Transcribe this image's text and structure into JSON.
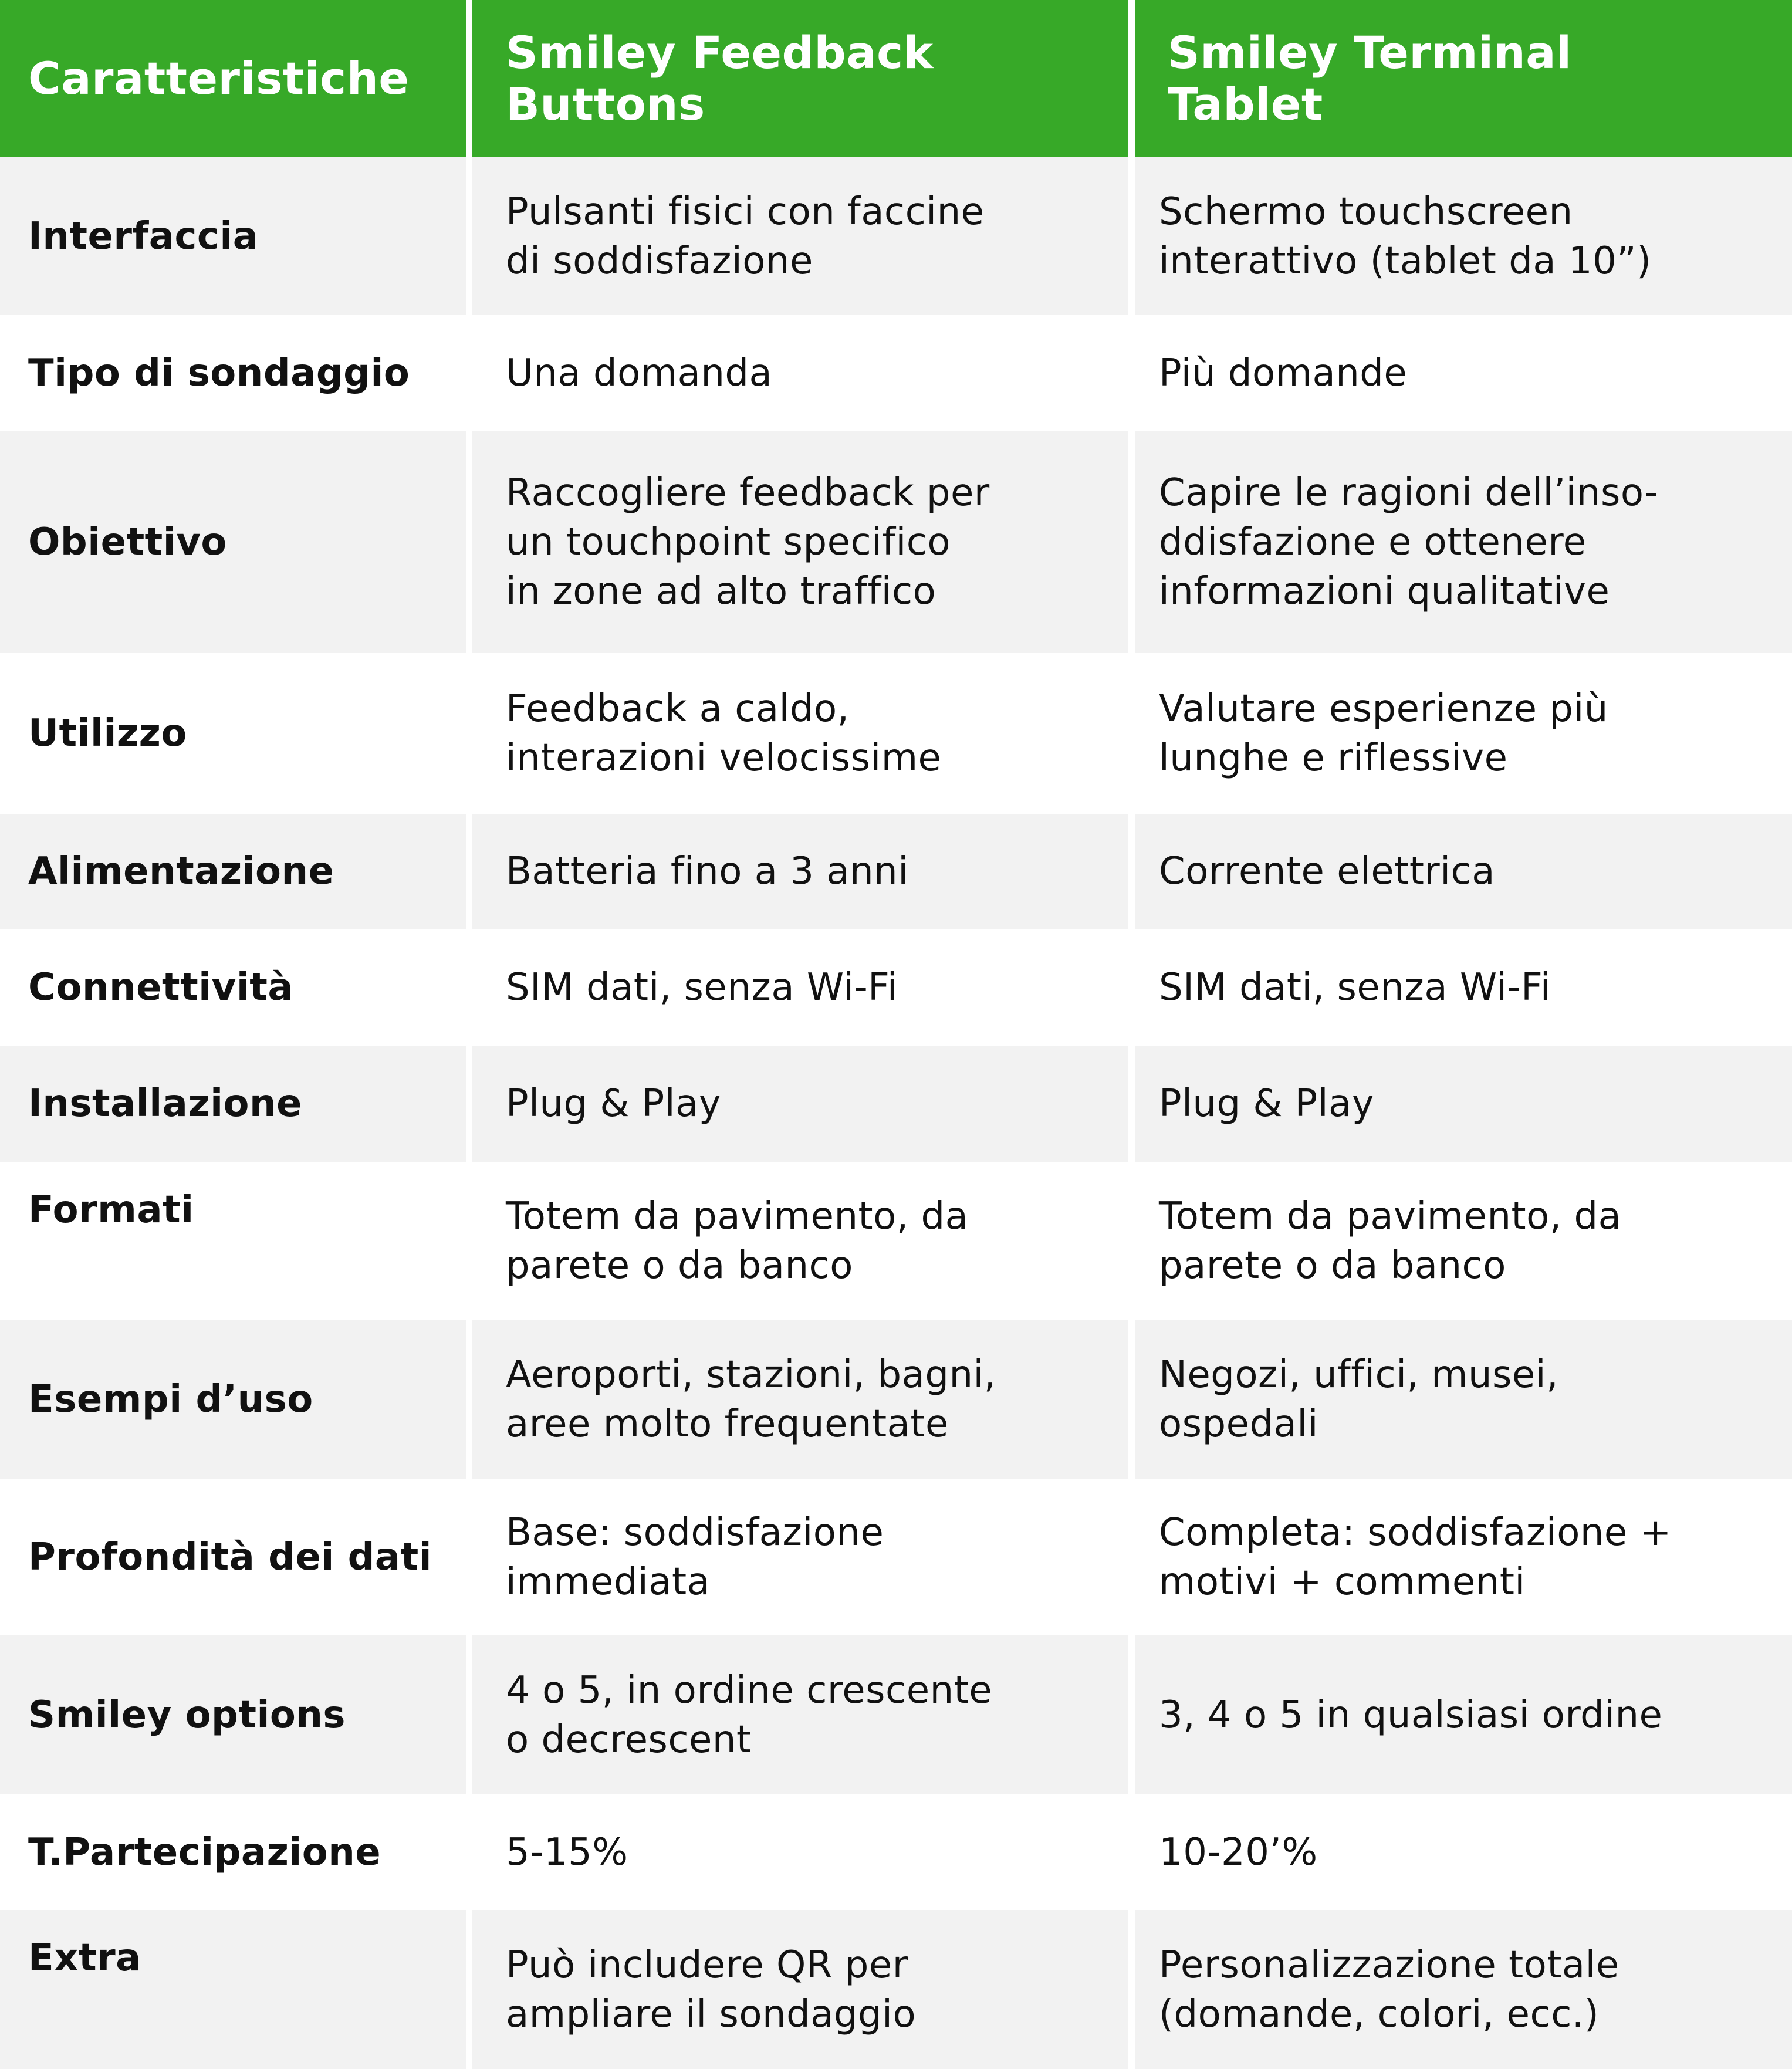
{
  "colors": {
    "header_bg": "#37a928",
    "stripe_bg": "#f2f2f2",
    "header_text": "#ffffff"
  },
  "header": [
    "Caratteristiche",
    "Smiley Feedback\nButtons",
    "Smiley Terminal\nTablet"
  ],
  "rows": [
    [
      "Interfaccia",
      "Pulsanti fisici con faccine\ndi soddisfazione",
      "Schermo touchscreen\ninterattivo (tablet da 10”)"
    ],
    [
      "Tipo di sondaggio",
      "Una domanda",
      "Più domande"
    ],
    [
      "Obiettivo",
      "Raccogliere feedback per\nun touchpoint specifico\nin zone ad alto traffico",
      "Capire le ragioni dell’inso-\nddisfazione e ottenere\ninformazioni qualitative"
    ],
    [
      "Utilizzo",
      "Feedback a caldo,\ninterazioni velocissime",
      "Valutare esperienze più\nlunghe e riflessive"
    ],
    [
      "Alimentazione",
      "Batteria fino a 3 anni",
      "Corrente elettrica"
    ],
    [
      "Connettività",
      "SIM dati, senza Wi-Fi",
      "SIM dati, senza Wi-Fi"
    ],
    [
      "Installazione",
      "Plug & Play",
      "Plug & Play"
    ],
    [
      "Formati",
      "Totem da pavimento, da\nparete o da banco",
      "Totem da pavimento, da\nparete o da banco"
    ],
    [
      "Esempi d’uso",
      "Aeroporti, stazioni, bagni,\naree molto frequentate",
      "Negozi, uffici, musei,\nospedali"
    ],
    [
      "Profondità dei dati",
      "Base: soddisfazione\nimmediata",
      "Completa: soddisfazione +\nmotivi + commenti"
    ],
    [
      "Smiley options",
      "4 o 5, in ordine crescente\no decrescent",
      "3, 4 o 5 in qualsiasi ordine"
    ],
    [
      "T.Partecipazione",
      "5-15%",
      "10-20’%"
    ],
    [
      "Extra",
      "Può includere QR per\nampliare il sondaggio",
      "Personalizzazione totale\n(domande, colori, ecc.)"
    ]
  ]
}
